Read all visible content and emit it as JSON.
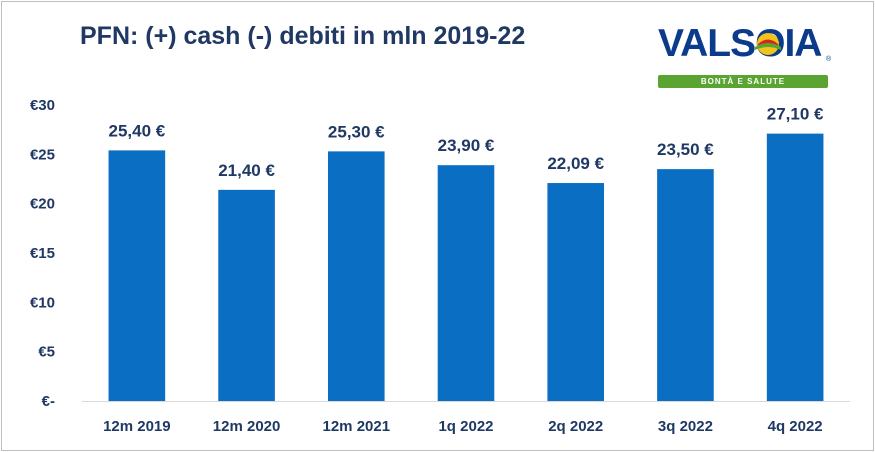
{
  "header": {
    "title": "PFN: (+) cash (-) debiti in mln 2019-22"
  },
  "logo": {
    "wordmark": "VALSOIA",
    "tagline": "BONTÀ E SALUTE",
    "reg": "®",
    "colors": {
      "blue": "#0c3b8c",
      "green": "#5aa531",
      "yellow": "#f2c318",
      "red": "#d6261f"
    }
  },
  "chart_data": {
    "type": "bar",
    "title": "PFN: (+) cash (-) debiti in mln 2019-22",
    "categories": [
      "12m 2019",
      "12m 2020",
      "12m 2021",
      "1q 2022",
      "2q 2022",
      "3q 2022",
      "4q 2022"
    ],
    "values": [
      25.4,
      21.4,
      25.3,
      23.9,
      22.09,
      23.5,
      27.1
    ],
    "data_labels": [
      "25,40 €",
      "21,40 €",
      "25,30 €",
      "23,90 €",
      "22,09 €",
      "23,50 €",
      "27,10 €"
    ],
    "ytick_values": [
      0,
      5,
      10,
      15,
      20,
      25,
      30
    ],
    "ytick_labels": [
      "€-",
      "€5",
      "€10",
      "€15",
      "€20",
      "€25",
      "€30"
    ],
    "ylim": [
      0,
      30
    ],
    "xlabel": "",
    "ylabel": "",
    "grid": false,
    "bar_color": "#0a6fc2",
    "text_color": "#1f3864"
  }
}
